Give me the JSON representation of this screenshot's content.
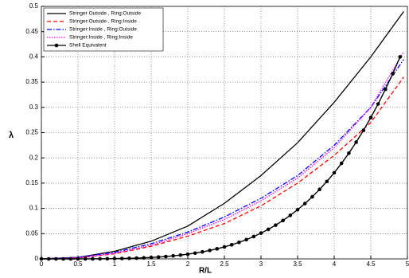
{
  "chart_data": {
    "type": "line",
    "xlabel": "R/L",
    "ylabel": "λ",
    "xlim": [
      0,
      5
    ],
    "ylim": [
      0,
      0.5
    ],
    "xticks": [
      0,
      0.5,
      1,
      1.5,
      2,
      2.5,
      3,
      3.5,
      4,
      4.5,
      5
    ],
    "yticks": [
      0,
      0.05,
      0.1,
      0.15,
      0.2,
      0.25,
      0.3,
      0.35,
      0.4,
      0.45,
      0.5
    ],
    "grid": true,
    "legend": "upper-left",
    "series": [
      {
        "name": "Stringer Outside , Ring:Outside",
        "color": "#000000",
        "style": "solid",
        "x": [
          0,
          0.5,
          1,
          1.5,
          2,
          2.5,
          3,
          3.5,
          4,
          4.5,
          4.95
        ],
        "values": [
          0,
          0.003,
          0.015,
          0.035,
          0.065,
          0.11,
          0.165,
          0.23,
          0.31,
          0.4,
          0.49
        ]
      },
      {
        "name": "Stringer:Outside , Ring:Inside",
        "color": "#ff0000",
        "style": "dashed",
        "x": [
          0,
          0.5,
          1,
          1.5,
          2,
          2.5,
          3,
          3.5,
          4,
          4.5,
          4.95
        ],
        "values": [
          0,
          0.002,
          0.01,
          0.025,
          0.045,
          0.07,
          0.105,
          0.15,
          0.205,
          0.27,
          0.36
        ]
      },
      {
        "name": "Stringer:Inside , Ring:Outside",
        "color": "#0000ff",
        "style": "dashdot",
        "x": [
          0,
          0.5,
          1,
          1.5,
          2,
          2.5,
          3,
          3.5,
          4,
          4.5,
          4.95
        ],
        "values": [
          0,
          0.003,
          0.013,
          0.03,
          0.053,
          0.083,
          0.12,
          0.165,
          0.225,
          0.3,
          0.395
        ]
      },
      {
        "name": "Stringer:Inside , Ring:Inside",
        "color": "#ff00ff",
        "style": "dotted",
        "x": [
          0,
          0.5,
          1,
          1.5,
          2,
          2.5,
          3,
          3.5,
          4,
          4.5,
          4.95
        ],
        "values": [
          0,
          0.002,
          0.011,
          0.027,
          0.05,
          0.078,
          0.115,
          0.16,
          0.22,
          0.3,
          0.41
        ]
      },
      {
        "name": "Shell Equivalent",
        "color": "#000000",
        "style": "solid",
        "marker": "circle",
        "x": [
          0,
          0.1,
          0.2,
          0.3,
          0.4,
          0.5,
          0.6,
          0.7,
          0.8,
          0.9,
          1,
          1.1,
          1.2,
          1.3,
          1.4,
          1.5,
          1.6,
          1.7,
          1.8,
          1.9,
          2,
          2.1,
          2.2,
          2.3,
          2.4,
          2.5,
          2.6,
          2.7,
          2.8,
          2.9,
          3,
          3.1,
          3.2,
          3.3,
          3.4,
          3.5,
          3.6,
          3.7,
          3.8,
          3.9,
          4,
          4.1,
          4.2,
          4.3,
          4.4,
          4.5,
          4.6,
          4.7,
          4.8,
          4.9
        ],
        "values": [
          0,
          0,
          0,
          0,
          0,
          0,
          0.0001,
          0.0001,
          0.0002,
          0.0003,
          0.0005,
          0.0008,
          0.0011,
          0.0015,
          0.0021,
          0.0028,
          0.0036,
          0.0047,
          0.006,
          0.0075,
          0.0093,
          0.0114,
          0.0139,
          0.0167,
          0.02,
          0.0237,
          0.0279,
          0.0327,
          0.0381,
          0.0442,
          0.051,
          0.0585,
          0.0668,
          0.076,
          0.0862,
          0.0974,
          0.1096,
          0.1229,
          0.1375,
          0.1534,
          0.1705,
          0.1892,
          0.2093,
          0.2311,
          0.2546,
          0.2798,
          0.3068,
          0.3358,
          0.3668,
          0.4
        ]
      }
    ]
  }
}
